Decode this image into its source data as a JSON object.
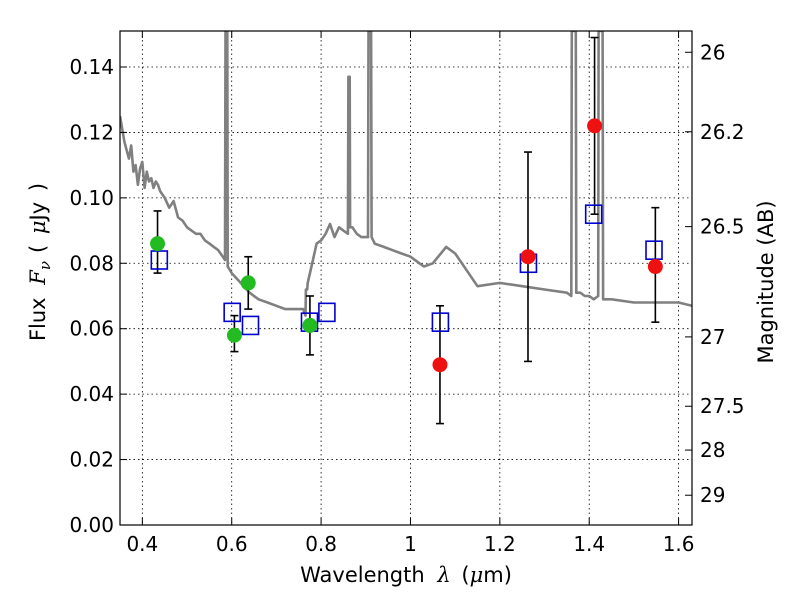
{
  "chart_data": {
    "type": "scatter",
    "xlabel": {
      "pre": "Wavelength",
      "sym": "λ",
      "paren_open": "(",
      "mu": "μ",
      "unit": "m)"
    },
    "ylabel": {
      "pre": "Flux",
      "sym": "F",
      "sub": "ν",
      "paren_open": "(",
      "mu": "μ",
      "unit": "Jy",
      "paren_close": ")"
    },
    "y2label": "Magnitude (AB)",
    "xlim": [
      0.35,
      1.63
    ],
    "ylim": [
      0.0,
      0.151
    ],
    "grid": true,
    "x_ticks": [
      0.4,
      0.6,
      0.8,
      1.0,
      1.2,
      1.4,
      1.6
    ],
    "x_tick_labels": [
      "0.4",
      "0.6",
      "0.8",
      "1",
      "1.2",
      "1.4",
      "1.6"
    ],
    "y_ticks": [
      0.0,
      0.02,
      0.04,
      0.06,
      0.08,
      0.1,
      0.12,
      0.14
    ],
    "y_tick_labels": [
      "0.00",
      "0.02",
      "0.04",
      "0.06",
      "0.08",
      "0.10",
      "0.12",
      "0.14"
    ],
    "y2_ticks": [
      {
        "label": "26",
        "flux": 0.1445
      },
      {
        "label": "26.2",
        "flux": 0.1202
      },
      {
        "label": "26.5",
        "flux": 0.0912
      },
      {
        "label": "27",
        "flux": 0.0575
      },
      {
        "label": "27.5",
        "flux": 0.0363
      },
      {
        "label": "28",
        "flux": 0.0229
      },
      {
        "label": "29",
        "flux": 0.0091
      }
    ],
    "colors": {
      "spectrum": "#808080",
      "optical_points": "#22bb22",
      "ir_points": "#ee1111",
      "model_boxes": "#0000cc",
      "errorbars": "#000000"
    },
    "series": [
      {
        "kind": "model_spectrum",
        "x": [
          0.35,
          0.36,
          0.37,
          0.375,
          0.38,
          0.385,
          0.39,
          0.395,
          0.4,
          0.405,
          0.41,
          0.415,
          0.42,
          0.425,
          0.43,
          0.435,
          0.44,
          0.445,
          0.45,
          0.46,
          0.47,
          0.48,
          0.49,
          0.5,
          0.51,
          0.52,
          0.53,
          0.54,
          0.55,
          0.56,
          0.57,
          0.58,
          0.585,
          0.586,
          0.59,
          0.591,
          0.6,
          0.62,
          0.64,
          0.66,
          0.68,
          0.7,
          0.72,
          0.74,
          0.75,
          0.76,
          0.765,
          0.766,
          0.769,
          0.77,
          0.78,
          0.79,
          0.8,
          0.81,
          0.82,
          0.83,
          0.84,
          0.85,
          0.86,
          0.861,
          0.864,
          0.865,
          0.87,
          0.88,
          0.89,
          0.9,
          0.905,
          0.906,
          0.912,
          0.913,
          0.92,
          0.94,
          0.96,
          0.98,
          1.0,
          1.02,
          1.03,
          1.05,
          1.08,
          1.1,
          1.15,
          1.2,
          1.25,
          1.3,
          1.35,
          1.36,
          1.361,
          1.37,
          1.371,
          1.38,
          1.39,
          1.4,
          1.41,
          1.42,
          1.421,
          1.43,
          1.431,
          1.45,
          1.5,
          1.55,
          1.6,
          1.63
        ],
        "y": [
          0.125,
          0.117,
          0.112,
          0.116,
          0.108,
          0.11,
          0.104,
          0.109,
          0.111,
          0.103,
          0.108,
          0.105,
          0.106,
          0.103,
          0.105,
          0.104,
          0.102,
          0.101,
          0.1,
          0.097,
          0.099,
          0.094,
          0.093,
          0.091,
          0.09,
          0.089,
          0.089,
          0.087,
          0.086,
          0.085,
          0.084,
          0.082,
          0.081,
          0.151,
          0.151,
          0.079,
          0.077,
          0.074,
          0.071,
          0.069,
          0.068,
          0.067,
          0.066,
          0.066,
          0.066,
          0.066,
          0.064,
          0.072,
          0.072,
          0.074,
          0.08,
          0.086,
          0.087,
          0.089,
          0.092,
          0.088,
          0.091,
          0.09,
          0.089,
          0.137,
          0.137,
          0.091,
          0.091,
          0.089,
          0.088,
          0.088,
          0.088,
          0.151,
          0.151,
          0.088,
          0.086,
          0.085,
          0.084,
          0.083,
          0.082,
          0.08,
          0.079,
          0.08,
          0.085,
          0.083,
          0.073,
          0.074,
          0.073,
          0.072,
          0.071,
          0.07,
          0.151,
          0.151,
          0.071,
          0.071,
          0.07,
          0.07,
          0.069,
          0.07,
          0.151,
          0.151,
          0.069,
          0.069,
          0.068,
          0.068,
          0.068,
          0.067
        ]
      },
      {
        "kind": "observed_optical",
        "x": [
          0.434,
          0.606,
          0.637,
          0.775
        ],
        "y": [
          0.086,
          0.058,
          0.074,
          0.061
        ],
        "err_low": [
          0.077,
          0.053,
          0.066,
          0.052
        ],
        "err_high": [
          0.096,
          0.064,
          0.082,
          0.07
        ]
      },
      {
        "kind": "observed_ir",
        "x": [
          1.066,
          1.263,
          1.412,
          1.548
        ],
        "y": [
          0.049,
          0.082,
          0.122,
          0.079
        ],
        "err_low": [
          0.031,
          0.05,
          0.095,
          0.062
        ],
        "err_high": [
          0.067,
          0.114,
          0.149,
          0.097
        ]
      },
      {
        "kind": "model_photometry",
        "x": [
          0.438,
          0.601,
          0.642,
          0.774,
          0.813,
          1.067,
          1.264,
          1.41,
          1.545
        ],
        "y": [
          0.081,
          0.065,
          0.061,
          0.062,
          0.065,
          0.062,
          0.08,
          0.095,
          0.084
        ]
      }
    ]
  }
}
